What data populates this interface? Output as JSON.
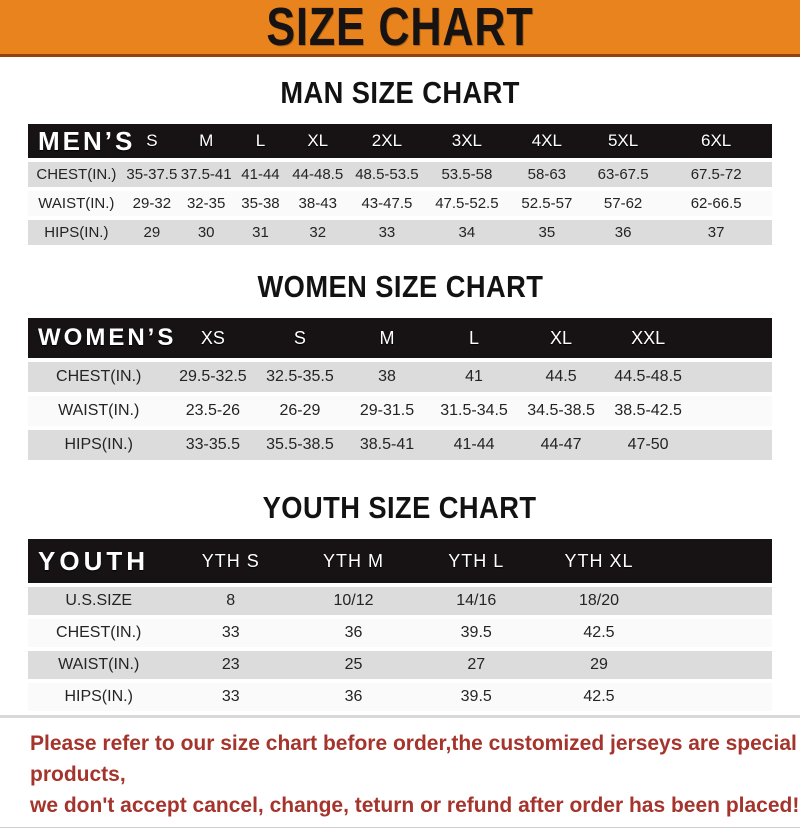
{
  "banner": {
    "title": "SIZE CHART"
  },
  "colors": {
    "banner_orange": "#E8831E",
    "header_black": "#171314",
    "row_gray": "#DCDCDC",
    "row_white": "#FAFAFA",
    "footer_red": "#A5342C"
  },
  "sections": [
    {
      "title": "MAN SIZE CHART",
      "header_label": "MEN’S",
      "columns": [
        "S",
        "M",
        "L",
        "XL",
        "2XL",
        "3XL",
        "4XL",
        "5XL",
        "6XL"
      ],
      "rows": [
        {
          "label": "CHEST(IN.)",
          "values": [
            "35-37.5",
            "37.5-41",
            "41-44",
            "44-48.5",
            "48.5-53.5",
            "53.5-58",
            "58-63",
            "63-67.5",
            "67.5-72"
          ]
        },
        {
          "label": "WAIST(IN.)",
          "values": [
            "29-32",
            "32-35",
            "35-38",
            "38-43",
            "43-47.5",
            "47.5-52.5",
            "52.5-57",
            "57-62",
            "62-66.5"
          ]
        },
        {
          "label": "HIPS(IN.)",
          "values": [
            "29",
            "30",
            "31",
            "32",
            "33",
            "34",
            "35",
            "36",
            "37"
          ]
        }
      ]
    },
    {
      "title": "WOMEN SIZE CHART",
      "header_label": "WOMEN’S",
      "columns": [
        "XS",
        "S",
        "M",
        "L",
        "XL",
        "XXL"
      ],
      "rows": [
        {
          "label": "CHEST(IN.)",
          "values": [
            "29.5-32.5",
            "32.5-35.5",
            "38",
            "41",
            "44.5",
            "44.5-48.5"
          ]
        },
        {
          "label": "WAIST(IN.)",
          "values": [
            "23.5-26",
            "26-29",
            "29-31.5",
            "31.5-34.5",
            "34.5-38.5",
            "38.5-42.5"
          ]
        },
        {
          "label": "HIPS(IN.)",
          "values": [
            "33-35.5",
            "35.5-38.5",
            "38.5-41",
            "41-44",
            "44-47",
            "47-50"
          ]
        }
      ]
    },
    {
      "title": "YOUTH SIZE CHART",
      "header_label": "YOUTH",
      "columns": [
        "YTH S",
        "YTH M",
        "YTH L",
        "YTH XL"
      ],
      "rows": [
        {
          "label": "U.S.SIZE",
          "values": [
            "8",
            "10/12",
            "14/16",
            "18/20"
          ]
        },
        {
          "label": "CHEST(IN.)",
          "values": [
            "33",
            "36",
            "39.5",
            "42.5"
          ]
        },
        {
          "label": "WAIST(IN.)",
          "values": [
            "23",
            "25",
            "27",
            "29"
          ]
        },
        {
          "label": "HIPS(IN.)",
          "values": [
            "33",
            "36",
            "39.5",
            "42.5"
          ]
        }
      ]
    }
  ],
  "footer": {
    "line1": "Please refer to our size chart before order,the customized jerseys are special products,",
    "line2": "we don't accept cancel, change, teturn or refund after order has been placed!"
  }
}
